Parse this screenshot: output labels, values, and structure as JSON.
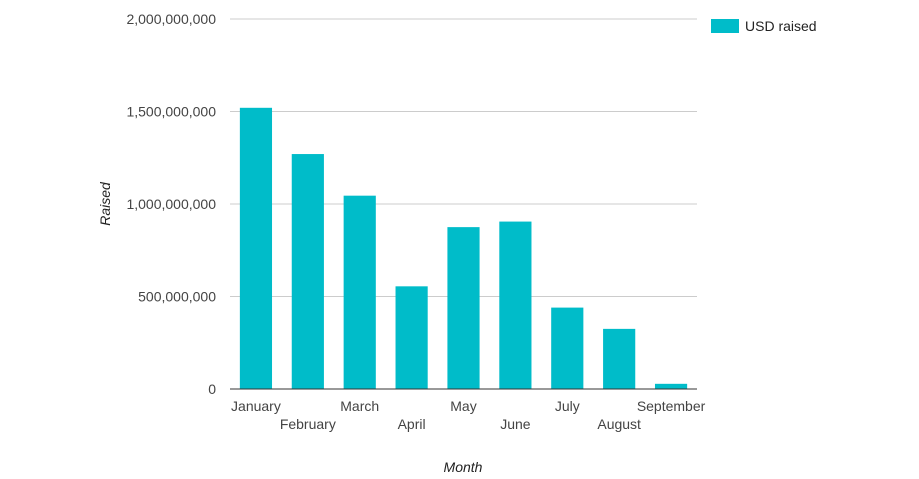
{
  "chart_data": {
    "type": "bar",
    "title": "",
    "xlabel": "Month",
    "ylabel": "Raised",
    "categories": [
      "January",
      "February",
      "March",
      "April",
      "May",
      "June",
      "July",
      "August",
      "September"
    ],
    "series": [
      {
        "name": "USD raised",
        "color": "#00bcc9",
        "values": [
          1520000000,
          1270000000,
          1045000000,
          555000000,
          875000000,
          905000000,
          440000000,
          325000000,
          28000000
        ]
      }
    ],
    "ylim": [
      0,
      2000000000
    ],
    "yticks": [
      0,
      500000000,
      1000000000,
      1500000000,
      2000000000
    ],
    "ytick_labels": [
      "0",
      "500,000,000",
      "1,000,000,000",
      "1,500,000,000",
      "2,000,000,000"
    ],
    "grid": true,
    "legend_position": "top-right"
  }
}
